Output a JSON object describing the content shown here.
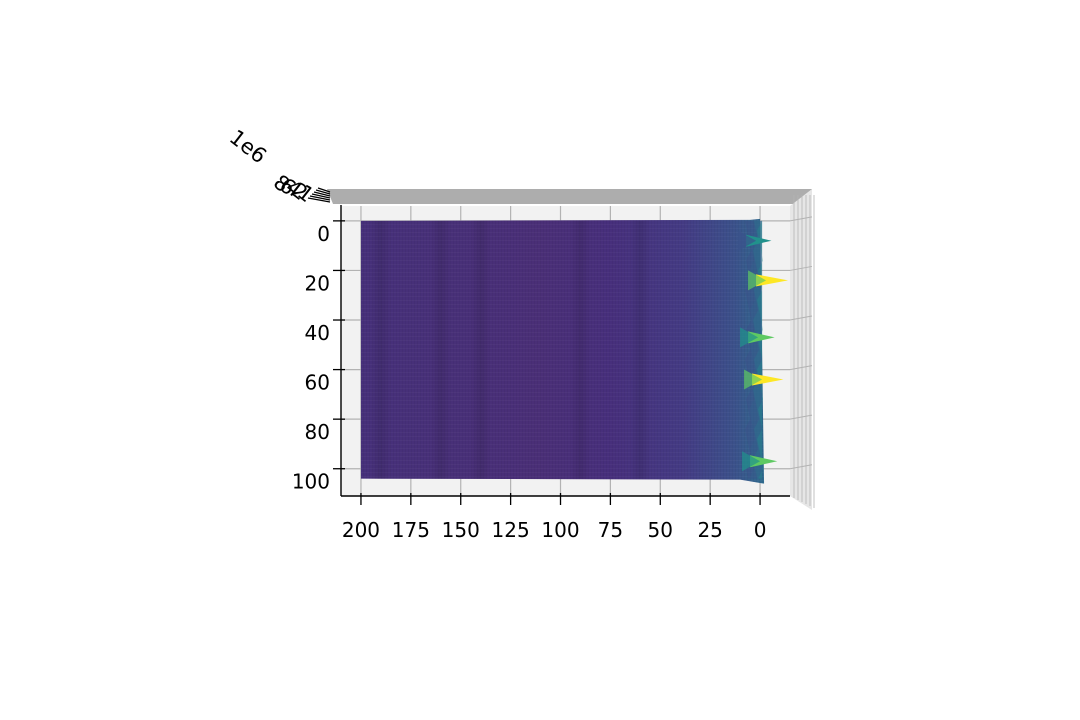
{
  "chart_data": {
    "type": "surface3d",
    "view": "top-down",
    "colormap": "viridis",
    "colors": {
      "pane_top": "#adadad",
      "pane_face": "#f2f2f2",
      "grid": "#b3b3b3",
      "surface_low": "#472d7b",
      "surface_mid": "#31688e",
      "surface_high": "#fde725"
    },
    "x_axis": {
      "range": [
        210,
        -15
      ],
      "ticks": [
        200,
        175,
        150,
        125,
        100,
        75,
        50,
        25,
        0
      ],
      "tick_labels": [
        "200",
        "175",
        "150",
        "125",
        "100",
        "75",
        "50",
        "25",
        "0"
      ]
    },
    "y_axis": {
      "range": [
        -6,
        111
      ],
      "ticks": [
        0,
        20,
        40,
        60,
        80,
        100
      ],
      "tick_labels": [
        "0",
        "20",
        "40",
        "60",
        "80",
        "100"
      ]
    },
    "z_axis": {
      "offset_text": "1e6",
      "tick_labels_overlapping": [
        "8",
        "6",
        "4",
        "2",
        "1"
      ]
    },
    "surface": {
      "x_extent": [
        0,
        200
      ],
      "y_extent": [
        0,
        104
      ],
      "peaks": [
        {
          "x": -5,
          "y": 24,
          "level": 1.0
        },
        {
          "x": -3,
          "y": 64,
          "level": 0.95
        },
        {
          "x": -2,
          "y": 97,
          "level": 0.6
        },
        {
          "x": -1,
          "y": 47,
          "level": 0.55
        },
        {
          "x": 0,
          "y": 8,
          "level": 0.45
        }
      ]
    }
  }
}
